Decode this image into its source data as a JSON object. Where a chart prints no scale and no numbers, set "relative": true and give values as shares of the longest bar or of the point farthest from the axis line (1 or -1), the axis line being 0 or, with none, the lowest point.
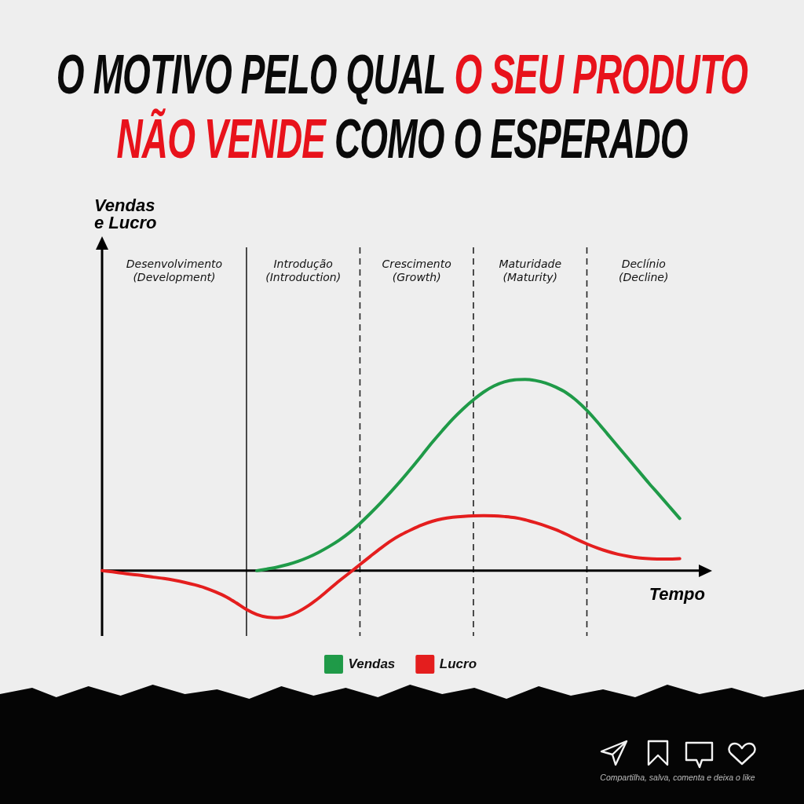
{
  "chart_data": {
    "type": "line",
    "title": "O MOTIVO PELO QUAL O SEU PRODUTO NÃO VENDE COMO O ESPERADO",
    "xlabel": "Tempo",
    "categories": [
      null,
      null,
      null,
      null,
      null,
      null,
      null,
      null,
      null,
      null,
      null,
      null,
      null,
      null,
      null,
      null,
      null,
      null,
      null,
      null,
      null,
      null,
      null,
      null,
      null,
      null,
      null,
      null,
      null,
      null,
      null,
      null,
      null,
      null,
      null,
      null,
      null,
      null,
      null,
      null,
      null,
      null,
      null,
      null,
      null,
      null,
      null,
      null,
      null,
      null,
      null,
      null,
      null,
      null,
      null,
      null,
      null,
      null,
      null
    ],
    "series": [
      {
        "name": "Vendas",
        "color": "#1f9a48",
        "values": [
          null,
          null,
          null,
          null,
          null,
          null,
          null,
          null,
          null,
          null,
          null,
          null,
          null,
          null,
          null,
          0,
          0.009,
          0.019,
          0.032,
          0.049,
          0.07,
          0.096,
          0.126,
          0.16,
          0.2,
          0.247,
          0.299,
          0.354,
          0.412,
          0.473,
          0.537,
          0.603,
          0.67,
          0.733,
          0.793,
          0.846,
          0.893,
          0.934,
          0.966,
          0.987,
          0.998,
          1.0,
          0.994,
          0.981,
          0.959,
          0.93,
          0.889,
          0.838,
          0.778,
          0.714,
          0.65,
          0.586,
          0.522,
          0.458,
          0.397,
          0.335,
          0.273,
          null,
          null
        ]
      },
      {
        "name": "Lucro",
        "color": "#e41e1e",
        "values": [
          0,
          -0.006,
          -0.013,
          -0.02,
          -0.026,
          -0.034,
          -0.041,
          -0.05,
          -0.061,
          -0.074,
          -0.09,
          -0.111,
          -0.136,
          -0.168,
          -0.203,
          -0.229,
          -0.243,
          -0.246,
          -0.237,
          -0.215,
          -0.183,
          -0.143,
          -0.098,
          -0.053,
          -0.011,
          0.032,
          0.075,
          0.117,
          0.156,
          0.188,
          0.215,
          0.239,
          0.258,
          0.271,
          0.279,
          0.284,
          0.287,
          0.288,
          0.287,
          0.283,
          0.277,
          0.266,
          0.251,
          0.234,
          0.214,
          0.19,
          0.164,
          0.14,
          0.119,
          0.101,
          0.086,
          0.075,
          0.067,
          0.063,
          0.061,
          0.061,
          0.063,
          null,
          null
        ]
      }
    ],
    "relative": true,
    "legend": "bottom",
    "tick_labels": false,
    "marker": "none",
    "line_style": "solid",
    "grid": "x",
    "annotations": [
      "Desenvolvimento\n(Development)",
      "Introdução\n(Introduction)",
      "Crescimento\n(Growth)",
      "Maturidade\n(Maturity)",
      "Declínio\n(Decline)",
      "Vendas\ne Lucro",
      "Compartilha, salva, comenta e deixa o like"
    ]
  }
}
